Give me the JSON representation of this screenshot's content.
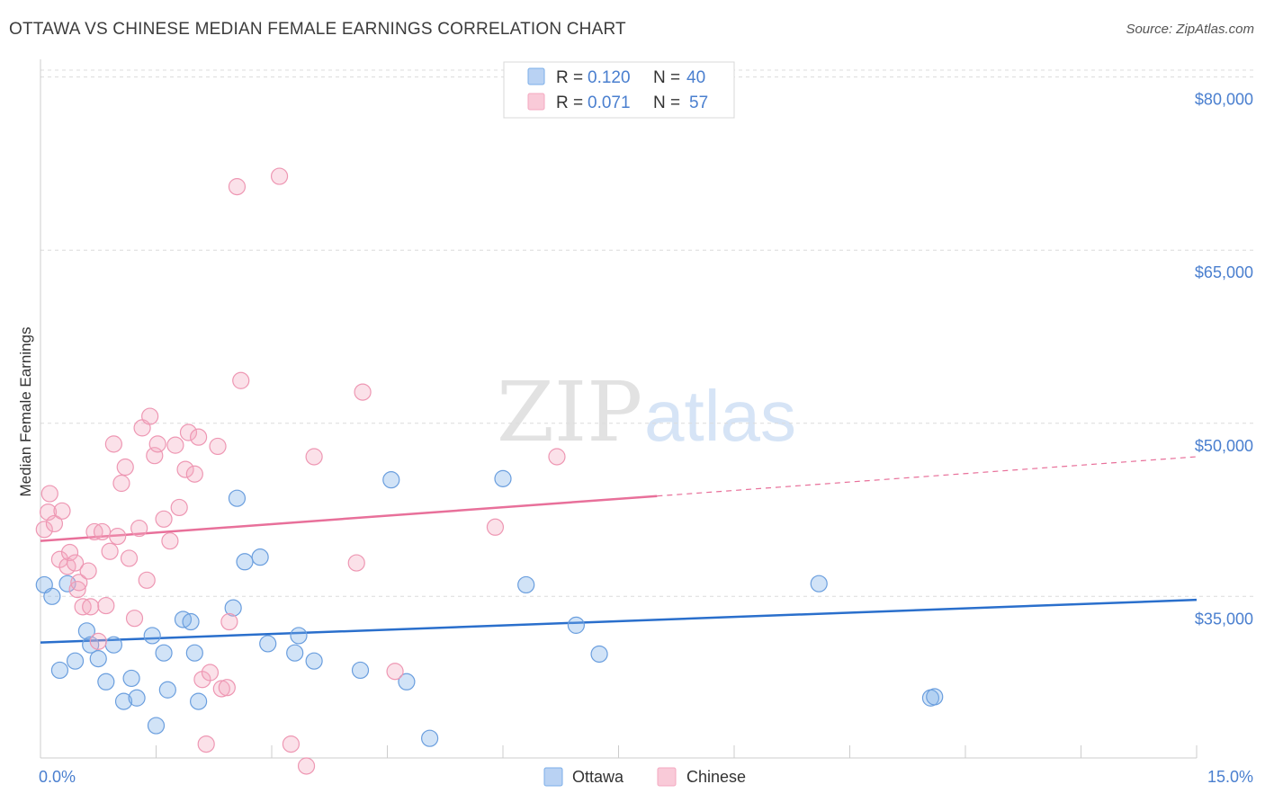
{
  "title": "OTTAWA VS CHINESE MEDIAN FEMALE EARNINGS CORRELATION CHART",
  "source": "Source: ZipAtlas.com",
  "watermark": {
    "zip": "ZIP",
    "atlas": "atlas"
  },
  "chart_data": {
    "type": "scatter",
    "ylabel": "Median Female Earnings",
    "xlim": [
      0,
      15
    ],
    "ylim": [
      21000,
      82000
    ],
    "yticks": [
      {
        "value": 35000,
        "label": "$35,000"
      },
      {
        "value": 50000,
        "label": "$50,000"
      },
      {
        "value": 65000,
        "label": "$65,000"
      },
      {
        "value": 80000,
        "label": "$80,000"
      }
    ],
    "xtick_labels": {
      "min": "0.0%",
      "max": "15.0%"
    },
    "legend_top": [
      {
        "name": "Ottawa",
        "r_label": "R = ",
        "r": "0.120",
        "n_label": "N = ",
        "n": "40"
      },
      {
        "name": "Chinese",
        "r_label": "R = ",
        "r": "0.071",
        "n_label": "N = ",
        "n": "57"
      }
    ],
    "series": [
      {
        "name": "Ottawa",
        "color": "#7baee8",
        "stroke": "#6a9ede",
        "trend": {
          "x0": 0,
          "y0": 31000,
          "x1": 15,
          "y1": 34700,
          "color": "#2a6fcc",
          "dashed_from": null
        },
        "points": [
          [
            0.05,
            36000
          ],
          [
            0.15,
            35000
          ],
          [
            0.25,
            28600
          ],
          [
            0.35,
            36100
          ],
          [
            0.45,
            29400
          ],
          [
            0.6,
            32000
          ],
          [
            0.65,
            30800
          ],
          [
            0.75,
            29600
          ],
          [
            0.85,
            27600
          ],
          [
            0.95,
            30800
          ],
          [
            1.08,
            25900
          ],
          [
            1.18,
            27900
          ],
          [
            1.25,
            26200
          ],
          [
            1.45,
            31600
          ],
          [
            1.5,
            23800
          ],
          [
            1.6,
            30100
          ],
          [
            1.65,
            26900
          ],
          [
            1.85,
            33000
          ],
          [
            1.95,
            32800
          ],
          [
            2.0,
            30100
          ],
          [
            2.05,
            25900
          ],
          [
            2.5,
            34000
          ],
          [
            2.55,
            43500
          ],
          [
            2.65,
            38000
          ],
          [
            2.85,
            38400
          ],
          [
            2.95,
            30900
          ],
          [
            3.3,
            30100
          ],
          [
            3.35,
            31600
          ],
          [
            3.55,
            29400
          ],
          [
            4.15,
            28600
          ],
          [
            4.55,
            45100
          ],
          [
            4.75,
            27600
          ],
          [
            5.05,
            22700
          ],
          [
            6.0,
            45200
          ],
          [
            6.3,
            36000
          ],
          [
            6.95,
            32500
          ],
          [
            7.25,
            30000
          ],
          [
            10.1,
            36100
          ],
          [
            11.55,
            26200
          ],
          [
            11.6,
            26300
          ]
        ]
      },
      {
        "name": "Chinese",
        "color": "#f4a8c0",
        "stroke": "#ee97b3",
        "trend": {
          "x0": 0,
          "y0": 39800,
          "x1": 15,
          "y1": 47100,
          "color": "#e8709a",
          "dashed_from": 8.0
        },
        "points": [
          [
            0.05,
            40800
          ],
          [
            0.1,
            42300
          ],
          [
            0.12,
            43900
          ],
          [
            0.18,
            41300
          ],
          [
            0.25,
            38200
          ],
          [
            0.28,
            42400
          ],
          [
            0.35,
            37600
          ],
          [
            0.38,
            38800
          ],
          [
            0.45,
            37900
          ],
          [
            0.48,
            35600
          ],
          [
            0.5,
            36200
          ],
          [
            0.55,
            34100
          ],
          [
            0.62,
            37200
          ],
          [
            0.65,
            34100
          ],
          [
            0.7,
            40600
          ],
          [
            0.75,
            31100
          ],
          [
            0.8,
            40600
          ],
          [
            0.85,
            34200
          ],
          [
            0.9,
            38900
          ],
          [
            0.95,
            48200
          ],
          [
            1.0,
            40200
          ],
          [
            1.05,
            44800
          ],
          [
            1.1,
            46200
          ],
          [
            1.15,
            38300
          ],
          [
            1.22,
            33100
          ],
          [
            1.28,
            40900
          ],
          [
            1.32,
            49600
          ],
          [
            1.38,
            36400
          ],
          [
            1.42,
            50600
          ],
          [
            1.48,
            47200
          ],
          [
            1.52,
            48200
          ],
          [
            1.6,
            41700
          ],
          [
            1.68,
            39800
          ],
          [
            1.75,
            48100
          ],
          [
            1.8,
            42700
          ],
          [
            1.88,
            46000
          ],
          [
            1.92,
            49200
          ],
          [
            2.0,
            45600
          ],
          [
            2.05,
            48800
          ],
          [
            2.1,
            27800
          ],
          [
            2.15,
            22200
          ],
          [
            2.2,
            28400
          ],
          [
            2.3,
            48000
          ],
          [
            2.35,
            27000
          ],
          [
            2.42,
            27100
          ],
          [
            2.45,
            32800
          ],
          [
            2.55,
            70500
          ],
          [
            2.6,
            53700
          ],
          [
            3.1,
            71400
          ],
          [
            3.25,
            22200
          ],
          [
            3.45,
            20300
          ],
          [
            3.55,
            47100
          ],
          [
            4.1,
            37900
          ],
          [
            4.18,
            52700
          ],
          [
            4.6,
            28500
          ],
          [
            5.9,
            41000
          ],
          [
            6.7,
            47100
          ]
        ]
      }
    ]
  }
}
